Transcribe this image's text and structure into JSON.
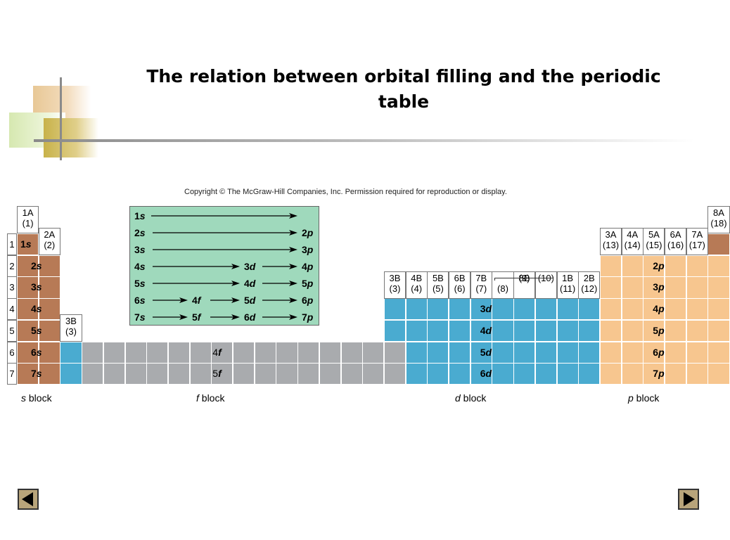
{
  "title": "The relation between orbital filling and the periodic table",
  "copyright": "Copyright © The McGraw-Hill Companies, Inc. Permission required for reproduction or display.",
  "colors": {
    "s_block": "#b77a56",
    "d_block": "#4aabd0",
    "f_block": "#a9abae",
    "p_block": "#f7c68f",
    "legend_bg": "#9fd9bc"
  },
  "group_headers": [
    {
      "top": "1A",
      "bottom": "(1)"
    },
    {
      "top": "2A",
      "bottom": "(2)"
    },
    {
      "top": "3B",
      "bottom": "(3)"
    },
    {
      "top": "3B",
      "bottom": "(3)"
    },
    {
      "top": "4B",
      "bottom": "(4)"
    },
    {
      "top": "5B",
      "bottom": "(5)"
    },
    {
      "top": "6B",
      "bottom": "(6)"
    },
    {
      "top": "7B",
      "bottom": "(7)"
    },
    {
      "top": "8B",
      "bottom": "(8)"
    },
    {
      "top": "",
      "bottom": "(9)"
    },
    {
      "top": "",
      "bottom": "(10)"
    },
    {
      "top": "1B",
      "bottom": "(11)"
    },
    {
      "top": "2B",
      "bottom": "(12)"
    },
    {
      "top": "3A",
      "bottom": "(13)"
    },
    {
      "top": "4A",
      "bottom": "(14)"
    },
    {
      "top": "5A",
      "bottom": "(15)"
    },
    {
      "top": "6A",
      "bottom": "(16)"
    },
    {
      "top": "7A",
      "bottom": "(17)"
    },
    {
      "top": "8A",
      "bottom": "(18)"
    }
  ],
  "periods": [
    "1",
    "2",
    "3",
    "4",
    "5",
    "6",
    "7"
  ],
  "s_labels": [
    "1s",
    "2s",
    "3s",
    "4s",
    "5s",
    "6s",
    "7s"
  ],
  "f_labels": [
    "4f",
    "5f"
  ],
  "d_labels": [
    "3d",
    "4d",
    "5d",
    "6d"
  ],
  "p_labels": [
    "2p",
    "3p",
    "4p",
    "5p",
    "6p",
    "7p"
  ],
  "block_labels": [
    {
      "letter": "s",
      "word": "block"
    },
    {
      "letter": "f",
      "word": "block"
    },
    {
      "letter": "d",
      "word": "block"
    },
    {
      "letter": "p",
      "word": "block"
    }
  ],
  "filling_order": [
    [
      "1s"
    ],
    [
      "2s",
      "2p"
    ],
    [
      "3s",
      "3p"
    ],
    [
      "4s",
      "3d",
      "4p"
    ],
    [
      "5s",
      "4d",
      "5p"
    ],
    [
      "6s",
      "4f",
      "5d",
      "6p"
    ],
    [
      "7s",
      "5f",
      "6d",
      "7p"
    ]
  ],
  "nav": {
    "prev_icon": "triangle-left-icon",
    "next_icon": "triangle-right-icon"
  }
}
